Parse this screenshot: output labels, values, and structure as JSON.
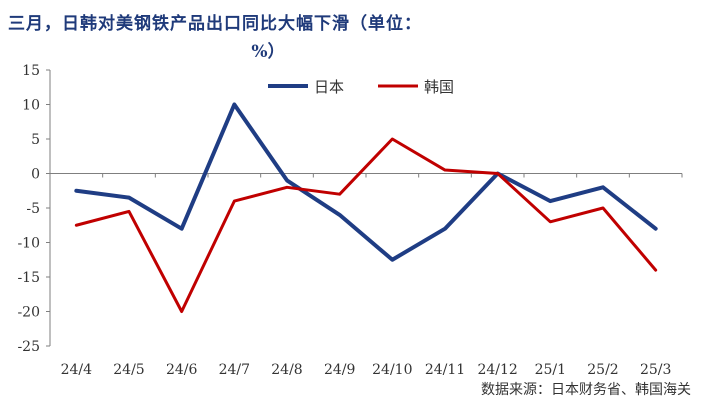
{
  "title_line1": "三月，日韩对美钢铁产品出口同比大幅下滑（单位：",
  "title_line2": "%）",
  "source": "数据来源：日本财务省、韩国海关",
  "chart_data": {
    "type": "line",
    "categories": [
      "24/4",
      "24/5",
      "24/6",
      "24/7",
      "24/8",
      "24/9",
      "24/10",
      "24/11",
      "24/12",
      "25/1",
      "25/2",
      "25/3"
    ],
    "ylim": [
      -25,
      15
    ],
    "yticks": [
      15,
      10,
      5,
      0,
      -5,
      -10,
      -15,
      -20,
      -25
    ],
    "legend_position": "top-center",
    "series": [
      {
        "name": "日本",
        "color": "#1f3d84",
        "values": [
          -2.5,
          -3.5,
          -8,
          10,
          -1,
          -6,
          -12.5,
          -8,
          0,
          -4,
          -2,
          -8
        ]
      },
      {
        "name": "韩国",
        "color": "#c00000",
        "values": [
          -7.5,
          -5.5,
          -20,
          -4,
          -2,
          -3,
          5,
          0.5,
          0,
          -7,
          -5,
          -14
        ]
      }
    ]
  }
}
